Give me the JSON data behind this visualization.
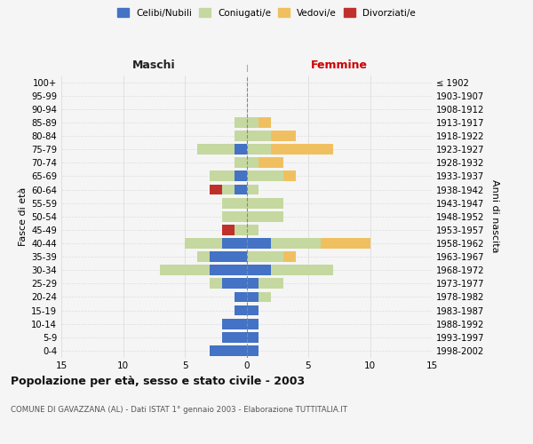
{
  "age_groups": [
    "0-4",
    "5-9",
    "10-14",
    "15-19",
    "20-24",
    "25-29",
    "30-34",
    "35-39",
    "40-44",
    "45-49",
    "50-54",
    "55-59",
    "60-64",
    "65-69",
    "70-74",
    "75-79",
    "80-84",
    "85-89",
    "90-94",
    "95-99",
    "100+"
  ],
  "birth_years": [
    "1998-2002",
    "1993-1997",
    "1988-1992",
    "1983-1987",
    "1978-1982",
    "1973-1977",
    "1968-1972",
    "1963-1967",
    "1958-1962",
    "1953-1957",
    "1948-1952",
    "1943-1947",
    "1938-1942",
    "1933-1937",
    "1928-1932",
    "1923-1927",
    "1918-1922",
    "1913-1917",
    "1908-1912",
    "1903-1907",
    "≤ 1902"
  ],
  "male": {
    "celibi": [
      3,
      2,
      2,
      1,
      1,
      2,
      3,
      3,
      2,
      0,
      0,
      0,
      1,
      1,
      0,
      1,
      0,
      0,
      0,
      0,
      0
    ],
    "coniugati": [
      0,
      0,
      0,
      0,
      0,
      1,
      4,
      1,
      3,
      1,
      2,
      2,
      1,
      2,
      1,
      3,
      1,
      1,
      0,
      0,
      0
    ],
    "vedovi": [
      0,
      0,
      0,
      0,
      0,
      0,
      0,
      0,
      0,
      0,
      0,
      0,
      0,
      0,
      0,
      0,
      0,
      0,
      0,
      0,
      0
    ],
    "divorziati": [
      0,
      0,
      0,
      0,
      0,
      0,
      0,
      0,
      0,
      1,
      0,
      0,
      1,
      0,
      0,
      0,
      0,
      0,
      0,
      0,
      0
    ]
  },
  "female": {
    "nubili": [
      1,
      1,
      1,
      1,
      1,
      1,
      2,
      0,
      2,
      0,
      0,
      0,
      0,
      0,
      0,
      0,
      0,
      0,
      0,
      0,
      0
    ],
    "coniugate": [
      0,
      0,
      0,
      0,
      1,
      2,
      5,
      3,
      4,
      1,
      3,
      3,
      1,
      3,
      1,
      2,
      2,
      1,
      0,
      0,
      0
    ],
    "vedove": [
      0,
      0,
      0,
      0,
      0,
      0,
      0,
      1,
      4,
      0,
      0,
      0,
      0,
      1,
      2,
      5,
      2,
      1,
      0,
      0,
      0
    ],
    "divorziate": [
      0,
      0,
      0,
      0,
      0,
      0,
      0,
      0,
      0,
      0,
      0,
      0,
      0,
      0,
      0,
      0,
      0,
      0,
      0,
      0,
      0
    ]
  },
  "colors": {
    "celibi": "#4472C4",
    "coniugati": "#C5D8A0",
    "vedovi": "#F0C060",
    "divorziati": "#C0302A"
  },
  "legend_labels": [
    "Celibi/Nubili",
    "Coniugati/e",
    "Vedovi/e",
    "Divorziati/e"
  ],
  "title": "Popolazione per età, sesso e stato civile - 2003",
  "subtitle": "COMUNE DI GAVAZZANA (AL) - Dati ISTAT 1° gennaio 2003 - Elaborazione TUTTITALIA.IT",
  "ylabel_left": "Fasce di età",
  "ylabel_right": "Anni di nascita",
  "xlabel_left": "Maschi",
  "xlabel_right": "Femmine",
  "xlim": 15,
  "background_color": "#f5f5f5",
  "grid_color": "#dddddd"
}
